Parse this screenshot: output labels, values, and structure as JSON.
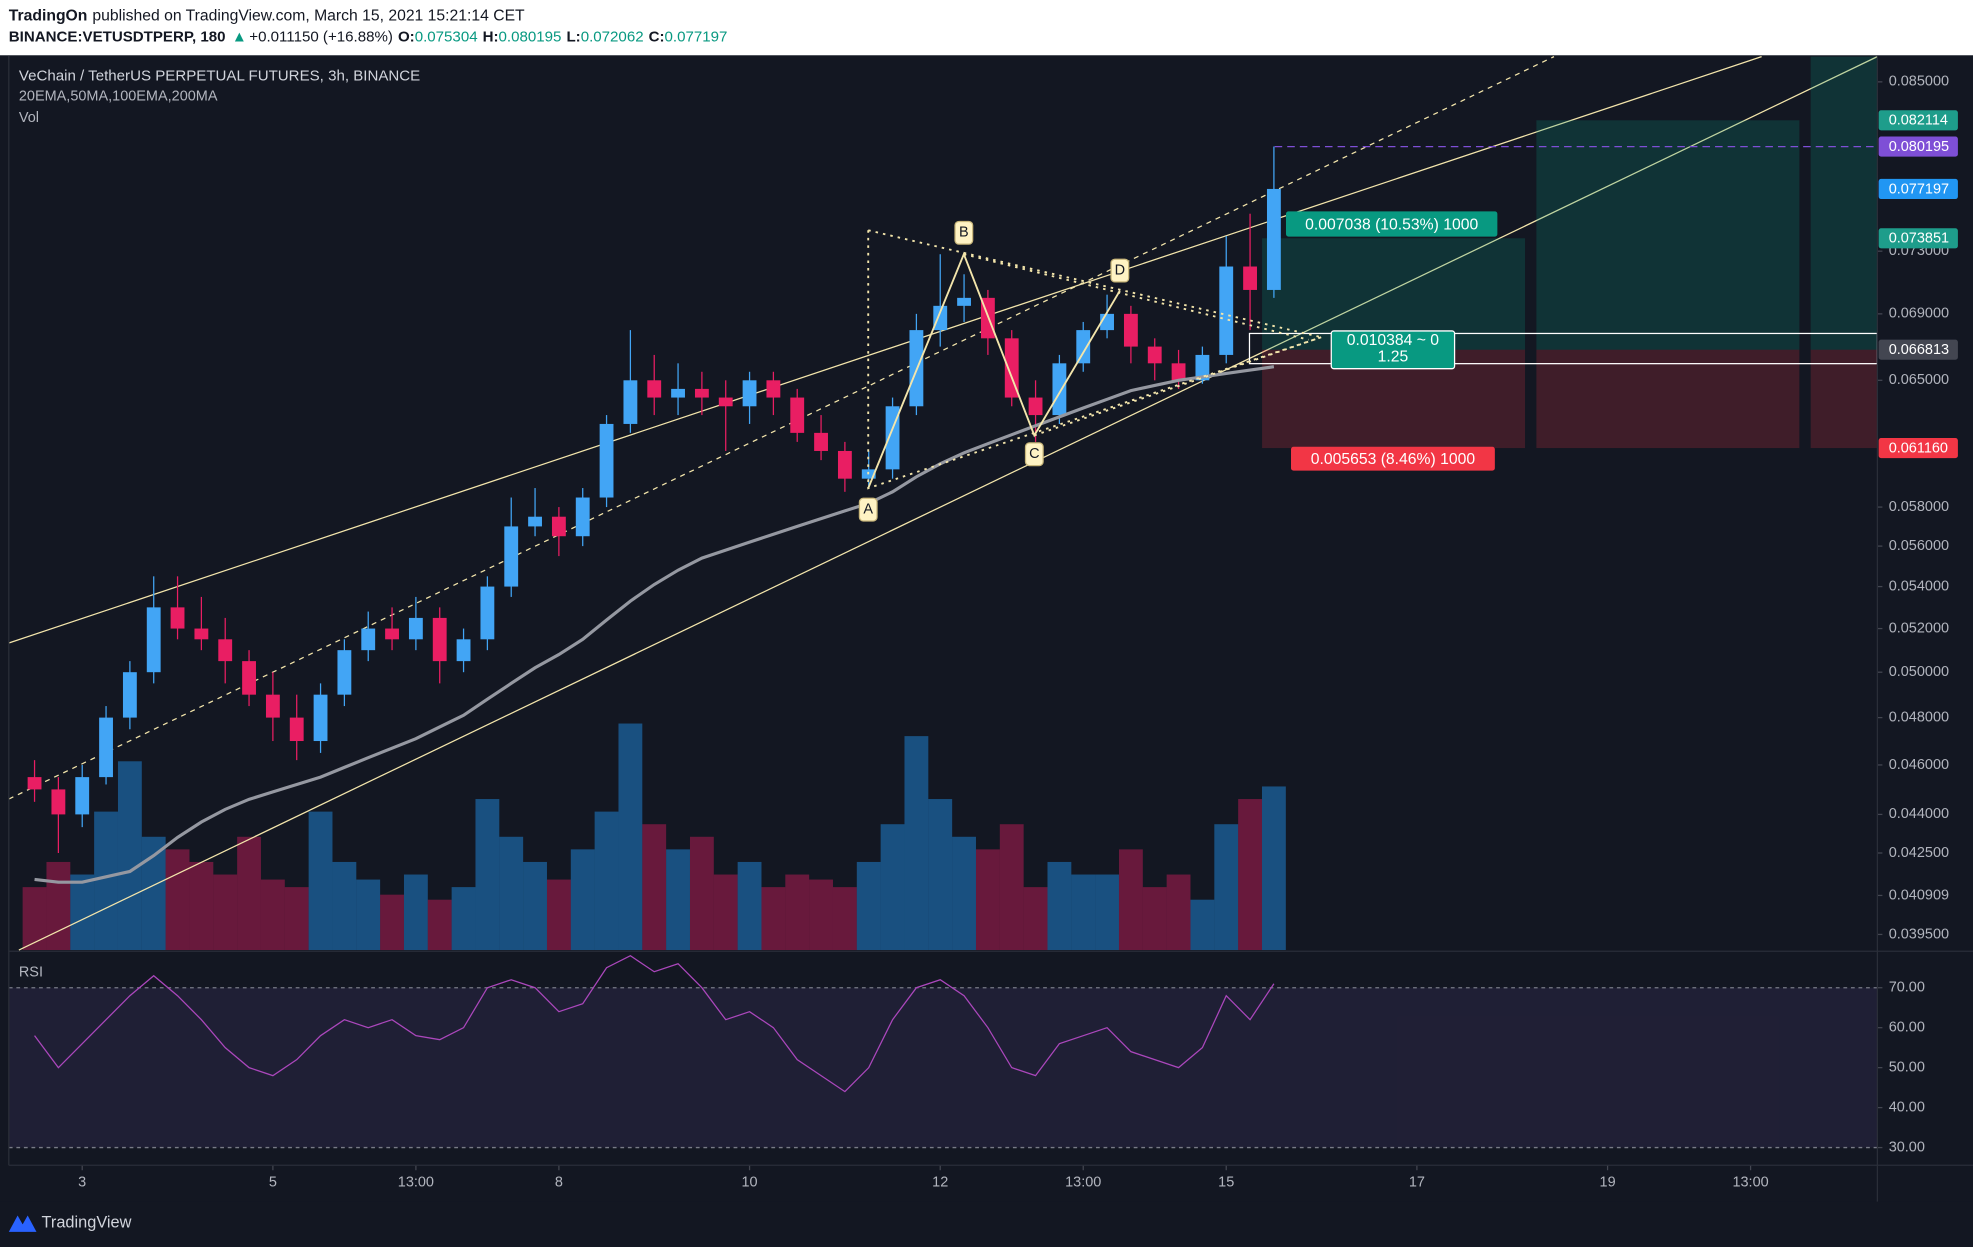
{
  "header": {
    "publisher": "TradingOn",
    "published": "published on TradingView.com, March 15, 2021 15:21:14 CET",
    "symbol": "BINANCE:VETUSDTPERP, 180",
    "arrow": "▲",
    "change": "+0.011150 (+16.88%)",
    "ohlc": [
      {
        "key": "O:",
        "value": "0.075304"
      },
      {
        "key": "H:",
        "value": "0.080195"
      },
      {
        "key": "L:",
        "value": "0.072062"
      },
      {
        "key": "C:",
        "value": "0.077197"
      }
    ]
  },
  "chart_data": {
    "type": "candlestick",
    "title": "VeChain / TetherUS PERPETUAL FUTURES, 3h, BINANCE",
    "indicators": "20EMA,50MA,100EMA,200MA",
    "volume_label": "Vol",
    "rsi_label": "RSI",
    "x": [
      2.5,
      2.75,
      3,
      3.25,
      3.5,
      3.75,
      4,
      4.25,
      4.5,
      4.75,
      5,
      5.25,
      5.5,
      5.75,
      6,
      6.25,
      6.5,
      6.75,
      7,
      7.25,
      7.5,
      7.75,
      8,
      8.25,
      8.5,
      8.75,
      9,
      9.25,
      9.5,
      9.75,
      10,
      10.25,
      10.5,
      10.75,
      11,
      11.25,
      11.5,
      11.75,
      12,
      12.25,
      12.5,
      12.75,
      13,
      13.25,
      13.5,
      13.75,
      14,
      14.25,
      14.5,
      14.75,
      15,
      15.25,
      15.5
    ],
    "candles": [
      [
        0.0455,
        0.0462,
        0.0445,
        0.045
      ],
      [
        0.045,
        0.0455,
        0.0425,
        0.044
      ],
      [
        0.044,
        0.046,
        0.0435,
        0.0455
      ],
      [
        0.0455,
        0.0485,
        0.0452,
        0.048
      ],
      [
        0.048,
        0.0505,
        0.0475,
        0.05
      ],
      [
        0.05,
        0.0545,
        0.0495,
        0.053
      ],
      [
        0.053,
        0.0545,
        0.0515,
        0.052
      ],
      [
        0.052,
        0.0535,
        0.051,
        0.0515
      ],
      [
        0.0515,
        0.0525,
        0.0495,
        0.0505
      ],
      [
        0.0505,
        0.051,
        0.0485,
        0.049
      ],
      [
        0.049,
        0.05,
        0.047,
        0.048
      ],
      [
        0.048,
        0.049,
        0.0462,
        0.047
      ],
      [
        0.047,
        0.0495,
        0.0465,
        0.049
      ],
      [
        0.049,
        0.0515,
        0.0485,
        0.051
      ],
      [
        0.051,
        0.0528,
        0.0505,
        0.052
      ],
      [
        0.052,
        0.053,
        0.051,
        0.0515
      ],
      [
        0.0515,
        0.0535,
        0.051,
        0.0525
      ],
      [
        0.0525,
        0.053,
        0.0495,
        0.0505
      ],
      [
        0.0505,
        0.052,
        0.05,
        0.0515
      ],
      [
        0.0515,
        0.0545,
        0.051,
        0.054
      ],
      [
        0.054,
        0.0585,
        0.0535,
        0.057
      ],
      [
        0.057,
        0.059,
        0.0565,
        0.0575
      ],
      [
        0.0575,
        0.058,
        0.0555,
        0.0565
      ],
      [
        0.0565,
        0.059,
        0.056,
        0.0585
      ],
      [
        0.0585,
        0.063,
        0.058,
        0.0625
      ],
      [
        0.0625,
        0.068,
        0.062,
        0.065
      ],
      [
        0.065,
        0.0665,
        0.063,
        0.064
      ],
      [
        0.064,
        0.066,
        0.063,
        0.0645
      ],
      [
        0.0645,
        0.0655,
        0.063,
        0.064
      ],
      [
        0.064,
        0.065,
        0.061,
        0.0635
      ],
      [
        0.0635,
        0.0655,
        0.0625,
        0.065
      ],
      [
        0.065,
        0.0655,
        0.063,
        0.064
      ],
      [
        0.064,
        0.0645,
        0.0615,
        0.062
      ],
      [
        0.062,
        0.063,
        0.0605,
        0.061
      ],
      [
        0.061,
        0.0615,
        0.0588,
        0.0595
      ],
      [
        0.0595,
        0.061,
        0.059,
        0.06
      ],
      [
        0.06,
        0.064,
        0.0595,
        0.0635
      ],
      [
        0.0635,
        0.069,
        0.063,
        0.068
      ],
      [
        0.068,
        0.0728,
        0.067,
        0.0695
      ],
      [
        0.0695,
        0.0715,
        0.0685,
        0.07
      ],
      [
        0.07,
        0.0705,
        0.0665,
        0.0675
      ],
      [
        0.0675,
        0.068,
        0.0635,
        0.064
      ],
      [
        0.064,
        0.065,
        0.0615,
        0.063
      ],
      [
        0.063,
        0.0665,
        0.0625,
        0.066
      ],
      [
        0.066,
        0.0685,
        0.0655,
        0.068
      ],
      [
        0.068,
        0.0702,
        0.0675,
        0.069
      ],
      [
        0.069,
        0.0695,
        0.066,
        0.067
      ],
      [
        0.067,
        0.0675,
        0.065,
        0.066
      ],
      [
        0.066,
        0.0668,
        0.0645,
        0.065
      ],
      [
        0.065,
        0.067,
        0.0648,
        0.0665
      ],
      [
        0.0665,
        0.074,
        0.066,
        0.072
      ],
      [
        0.072,
        0.0755,
        0.068,
        0.0705
      ],
      [
        0.0705,
        0.0802,
        0.07,
        0.0772
      ]
    ],
    "ema": [
      0.0415,
      0.0414,
      0.0414,
      0.0416,
      0.0418,
      0.0424,
      0.0431,
      0.0437,
      0.0442,
      0.0446,
      0.0449,
      0.0452,
      0.0455,
      0.0459,
      0.0463,
      0.0467,
      0.0471,
      0.0476,
      0.0481,
      0.0488,
      0.0495,
      0.0502,
      0.0508,
      0.0515,
      0.0524,
      0.0533,
      0.0541,
      0.0548,
      0.0554,
      0.0558,
      0.0562,
      0.0566,
      0.057,
      0.0574,
      0.0578,
      0.0582,
      0.0588,
      0.0596,
      0.0603,
      0.0609,
      0.0614,
      0.0619,
      0.0624,
      0.0629,
      0.0634,
      0.0639,
      0.0644,
      0.0647,
      0.065,
      0.0652,
      0.0654,
      0.0656,
      0.0658
    ],
    "volume": [
      25,
      35,
      30,
      55,
      75,
      45,
      40,
      35,
      30,
      45,
      28,
      25,
      55,
      35,
      28,
      22,
      30,
      20,
      25,
      60,
      45,
      35,
      28,
      40,
      55,
      90,
      50,
      40,
      45,
      30,
      35,
      25,
      30,
      28,
      25,
      35,
      50,
      85,
      60,
      45,
      40,
      50,
      25,
      35,
      30,
      30,
      40,
      25,
      30,
      20,
      50,
      60,
      65
    ],
    "rsi": [
      58,
      50,
      56,
      62,
      68,
      73,
      68,
      62,
      55,
      50,
      48,
      52,
      58,
      62,
      60,
      62,
      58,
      57,
      60,
      70,
      72,
      70,
      64,
      66,
      75,
      78,
      74,
      76,
      70,
      62,
      64,
      60,
      52,
      48,
      44,
      50,
      62,
      70,
      72,
      68,
      60,
      50,
      48,
      56,
      58,
      60,
      54,
      52,
      50,
      55,
      68,
      62,
      71
    ],
    "xlim": [
      2.23,
      21.83
    ],
    "ylim": [
      0.03895,
      0.08695
    ],
    "log_y": true,
    "xticks": [
      3,
      5,
      {
        "value": 6.5,
        "label": "13:00"
      },
      8,
      10,
      12,
      {
        "value": 13.5,
        "label": "13:00"
      },
      15,
      17,
      19,
      {
        "value": 20.5,
        "label": "13:00"
      }
    ],
    "yticks": [
      {
        "value": 0.085,
        "label": "0.085000"
      },
      {
        "value": 0.073,
        "label": "0.073000"
      },
      {
        "value": 0.069,
        "label": "0.069000"
      },
      {
        "value": 0.065,
        "label": "0.065000"
      },
      {
        "value": 0.058,
        "label": "0.058000"
      },
      {
        "value": 0.056,
        "label": "0.056000"
      },
      {
        "value": 0.054,
        "label": "0.054000"
      },
      {
        "value": 0.052,
        "label": "0.052000"
      },
      {
        "value": 0.05,
        "label": "0.050000"
      },
      {
        "value": 0.048,
        "label": "0.048000"
      },
      {
        "value": 0.046,
        "label": "0.046000"
      },
      {
        "value": 0.044,
        "label": "0.044000"
      },
      {
        "value": 0.0425,
        "label": "0.042500"
      },
      {
        "value": 0.040909,
        "label": "0.040909"
      },
      {
        "value": 0.0395,
        "label": "0.039500"
      }
    ],
    "rsi_ylim": [
      25.9,
      78.8
    ],
    "rsi_yticks": [
      {
        "value": 70,
        "label": "70.00"
      },
      {
        "value": 60,
        "label": "60.00"
      },
      {
        "value": 50,
        "label": "50.00"
      },
      {
        "value": 40,
        "label": "40.00"
      },
      {
        "value": 30,
        "label": "30.00"
      }
    ],
    "price_tags": [
      {
        "price": 0.082114,
        "color": "#1e9d8b"
      },
      {
        "price": 0.080195,
        "color": "#7e4fd6"
      },
      {
        "price": 0.077197,
        "color": "#2196f3"
      },
      {
        "price": 0.073851,
        "color": "#1e9d8b"
      },
      {
        "price": 0.066813,
        "color": "#434651"
      },
      {
        "price": {
          "value": 0.06116,
          "label": "0.061160"
        },
        "color": "#f23645"
      }
    ],
    "up_color": "#42a5f5",
    "down_color": "#e91e63",
    "ema_color": "#9598a1",
    "rsi_color": "#ab47bc",
    "pattern": [
      "A",
      "B",
      "C",
      "D"
    ],
    "position": {
      "target": "0.007038 (10.53%) 1000",
      "ratio": "0.010384 ~ 0",
      "rr": "1.25",
      "stop": "0.005653 (8.46%) 1000"
    }
  },
  "footer": {
    "brand": "TradingView"
  }
}
